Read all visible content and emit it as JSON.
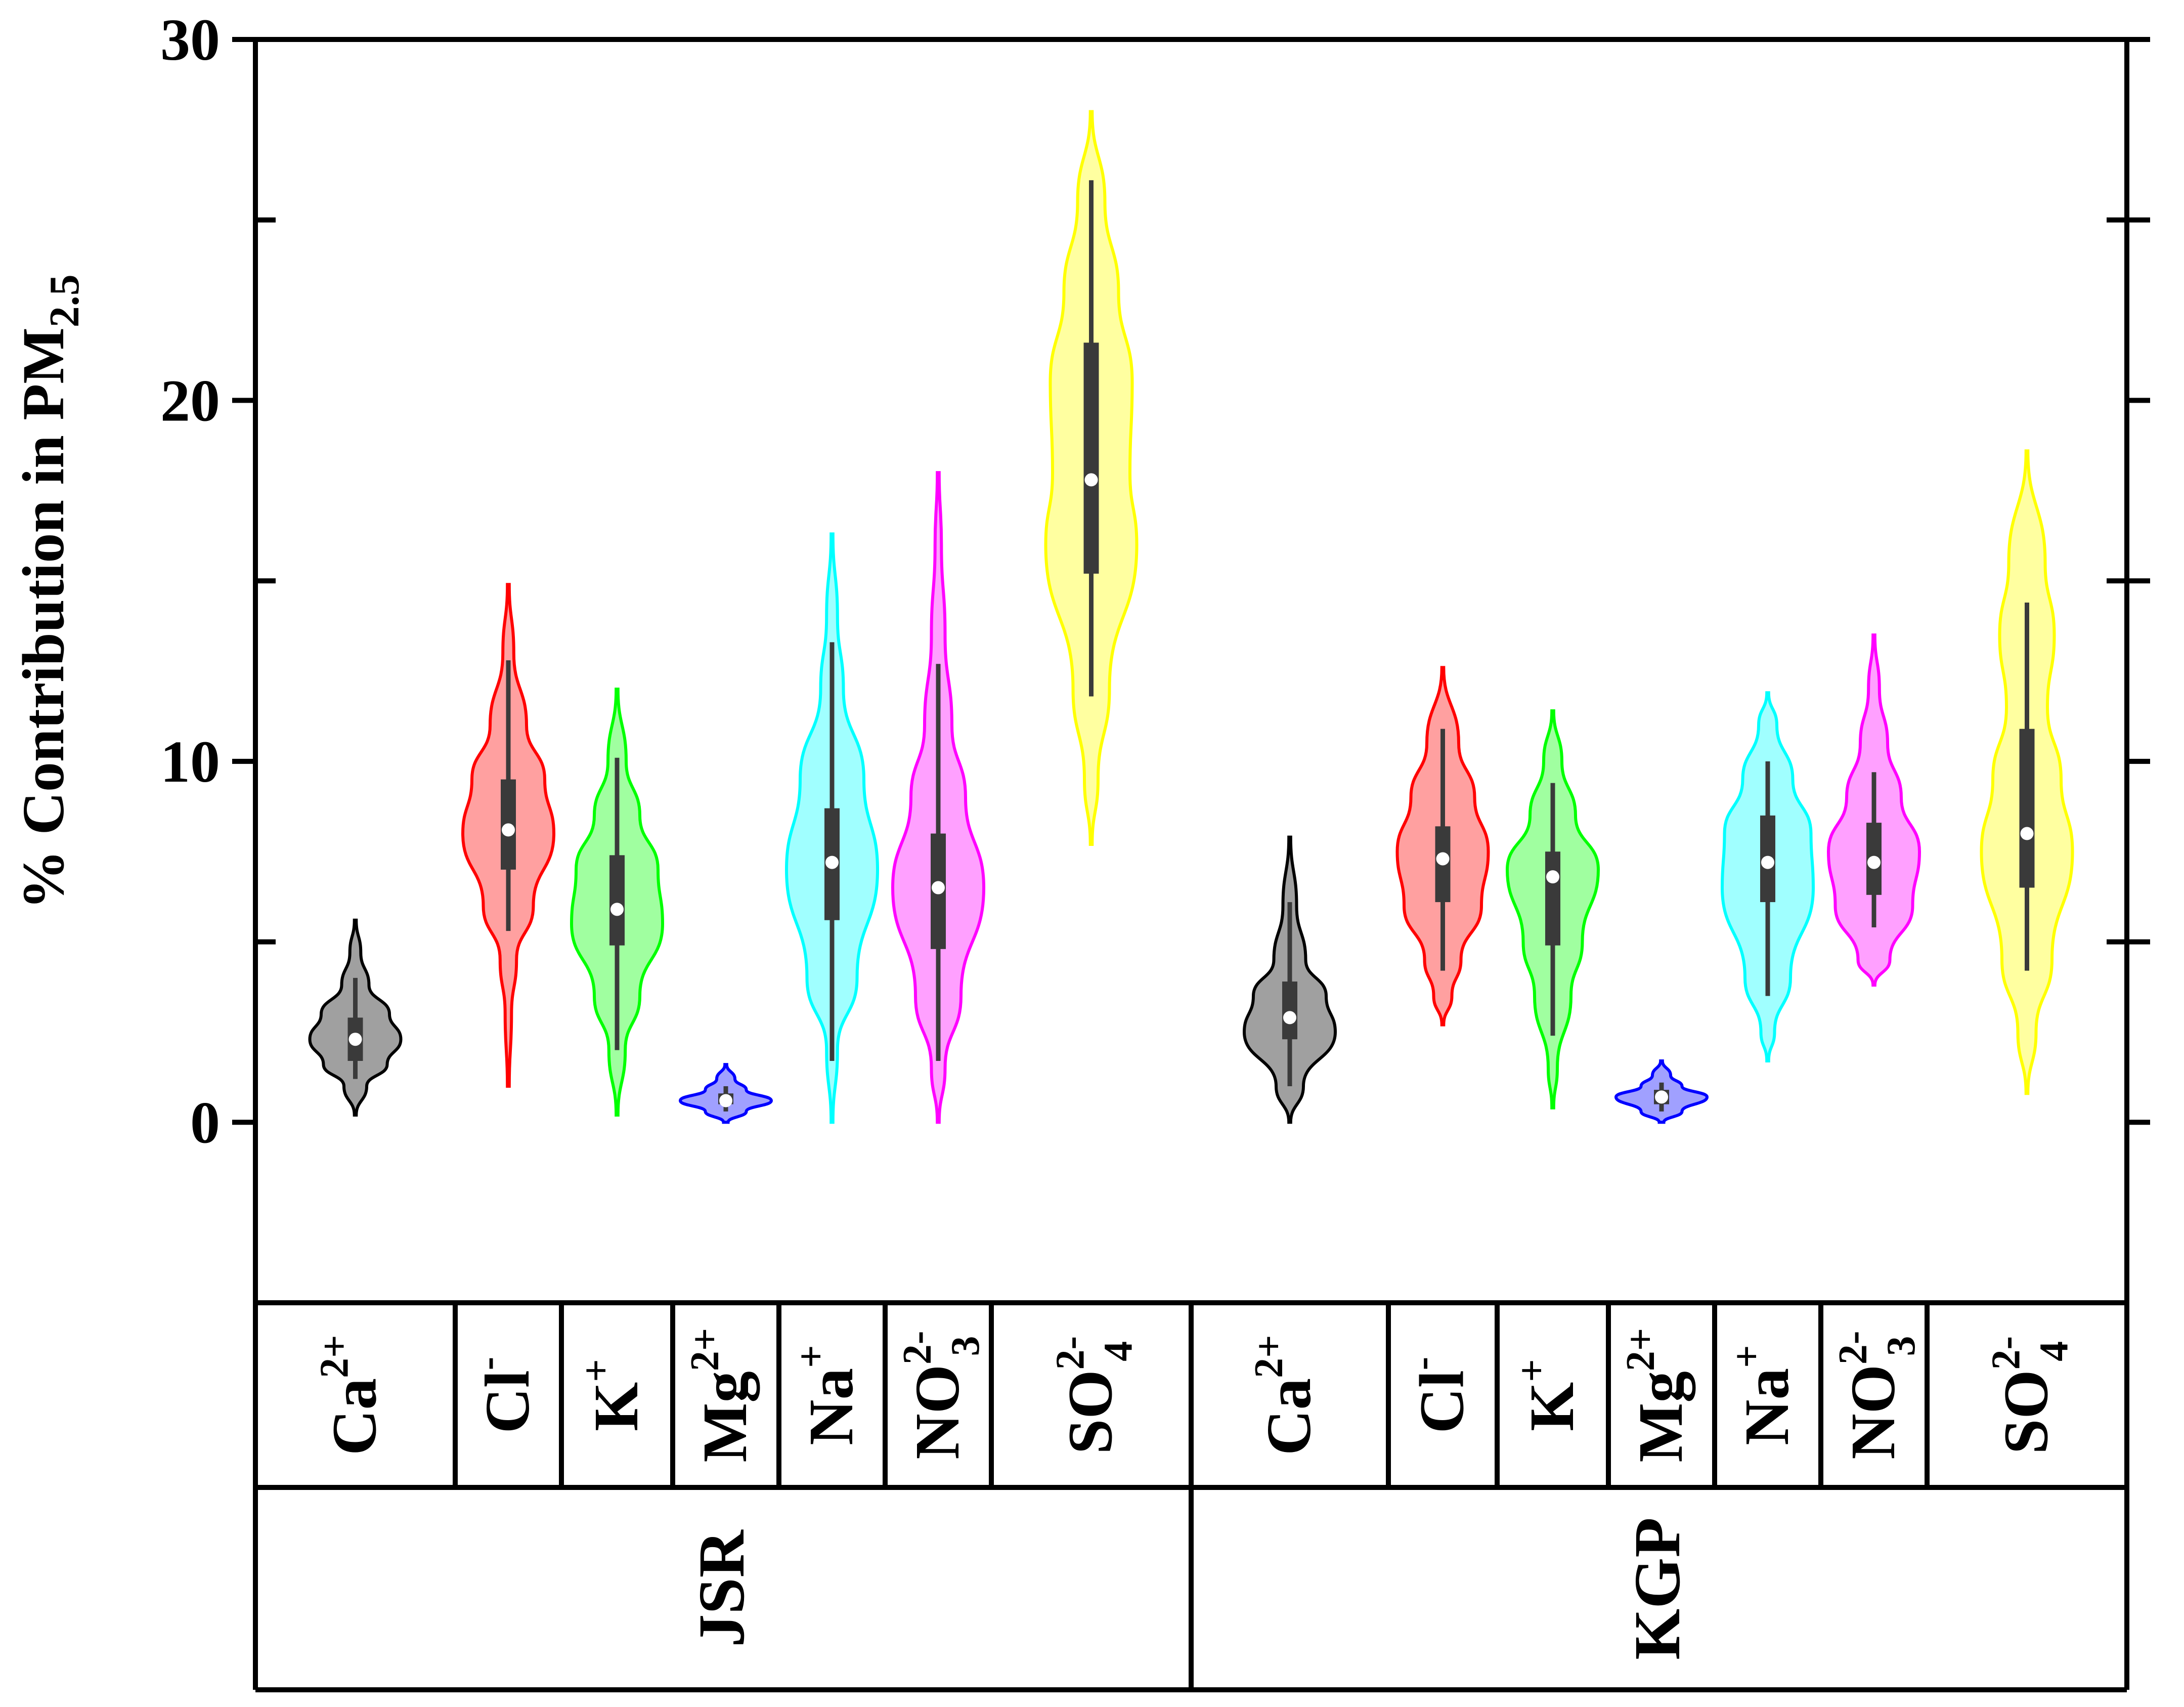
{
  "chart_data": {
    "type": "violin",
    "ylabel": "% Contribution in PM",
    "ylabel_sub": "2.5",
    "ylim": [
      -5,
      30
    ],
    "yticks": [
      0,
      10,
      20,
      30
    ],
    "ytick_labels": [
      "0",
      "10",
      "20",
      "30"
    ],
    "grid": false,
    "groups": [
      {
        "name": "JSR",
        "categories": [
          {
            "base": "Ca",
            "sub": "",
            "sup": "2+",
            "color": "#000000",
            "fill": "#808080",
            "min": 0.2,
            "max": 5.6,
            "whisker_low": 1.2,
            "whisker_high": 4.0,
            "q1": 1.7,
            "q3": 2.9,
            "median": 2.3,
            "density": [
              [
                0.2,
                0.02
              ],
              [
                1.0,
                0.25
              ],
              [
                1.6,
                0.7
              ],
              [
                2.3,
                1.0
              ],
              [
                3.0,
                0.75
              ],
              [
                3.8,
                0.3
              ],
              [
                4.7,
                0.12
              ],
              [
                5.6,
                0.02
              ]
            ]
          },
          {
            "base": "Cl",
            "sub": "",
            "sup": "-",
            "color": "#ff0000",
            "fill": "#ff8080",
            "min": 1.0,
            "max": 14.9,
            "whisker_low": 5.3,
            "whisker_high": 12.8,
            "q1": 7.0,
            "q3": 9.5,
            "median": 8.1,
            "density": [
              [
                1.0,
                0.02
              ],
              [
                3.0,
                0.07
              ],
              [
                4.5,
                0.18
              ],
              [
                6.0,
                0.55
              ],
              [
                8.0,
                1.0
              ],
              [
                9.5,
                0.8
              ],
              [
                11.0,
                0.4
              ],
              [
                13.0,
                0.12
              ],
              [
                14.9,
                0.02
              ]
            ]
          },
          {
            "base": "K",
            "sub": "",
            "sup": "+",
            "color": "#00ff00",
            "fill": "#80ff80",
            "min": 0.2,
            "max": 12.0,
            "whisker_low": 2.0,
            "whisker_high": 10.1,
            "q1": 4.9,
            "q3": 7.4,
            "median": 5.9,
            "density": [
              [
                0.2,
                0.02
              ],
              [
                2.0,
                0.18
              ],
              [
                3.5,
                0.5
              ],
              [
                5.5,
                1.0
              ],
              [
                7.0,
                0.9
              ],
              [
                8.5,
                0.5
              ],
              [
                10.0,
                0.2
              ],
              [
                12.0,
                0.02
              ]
            ]
          },
          {
            "base": "Mg",
            "sub": "",
            "sup": "2+",
            "color": "#0000ff",
            "fill": "#8080ff",
            "min": 0.0,
            "max": 1.6,
            "whisker_low": 0.3,
            "whisker_high": 1.0,
            "q1": 0.5,
            "q3": 0.8,
            "median": 0.6,
            "density": [
              [
                0.0,
                0.05
              ],
              [
                0.3,
                0.45
              ],
              [
                0.6,
                1.0
              ],
              [
                0.9,
                0.45
              ],
              [
                1.2,
                0.2
              ],
              [
                1.6,
                0.02
              ]
            ]
          },
          {
            "base": "Na",
            "sub": "",
            "sup": "+",
            "color": "#00ffff",
            "fill": "#80ffff",
            "min": 0.0,
            "max": 16.3,
            "whisker_low": 1.7,
            "whisker_high": 13.3,
            "q1": 5.6,
            "q3": 8.7,
            "median": 7.2,
            "density": [
              [
                0.0,
                0.02
              ],
              [
                2.0,
                0.12
              ],
              [
                4.0,
                0.55
              ],
              [
                7.0,
                1.0
              ],
              [
                9.5,
                0.7
              ],
              [
                12.0,
                0.25
              ],
              [
                14.0,
                0.12
              ],
              [
                16.3,
                0.02
              ]
            ]
          },
          {
            "base": "NO",
            "sub": "3",
            "sup": "2-",
            "color": "#ff00ff",
            "fill": "#ff80ff",
            "min": 0.0,
            "max": 18.0,
            "whisker_low": 1.7,
            "whisker_high": 12.7,
            "q1": 4.8,
            "q3": 8.0,
            "median": 6.5,
            "density": [
              [
                0.0,
                0.02
              ],
              [
                1.5,
                0.15
              ],
              [
                3.5,
                0.5
              ],
              [
                6.5,
                1.0
              ],
              [
                9.0,
                0.6
              ],
              [
                11.0,
                0.3
              ],
              [
                13.5,
                0.15
              ],
              [
                16.0,
                0.07
              ],
              [
                18.0,
                0.02
              ]
            ]
          },
          {
            "base": "SO",
            "sub": "4",
            "sup": "2-",
            "color": "#ffff00",
            "fill": "#ffff80",
            "min": 7.7,
            "max": 28.0,
            "whisker_low": 11.8,
            "whisker_high": 26.1,
            "q1": 15.2,
            "q3": 21.6,
            "median": 17.8,
            "density": [
              [
                7.7,
                0.02
              ],
              [
                9.5,
                0.15
              ],
              [
                12.0,
                0.4
              ],
              [
                16.0,
                1.0
              ],
              [
                18.0,
                0.85
              ],
              [
                20.5,
                0.9
              ],
              [
                23.0,
                0.6
              ],
              [
                25.5,
                0.3
              ],
              [
                28.0,
                0.02
              ]
            ]
          }
        ]
      },
      {
        "name": "KGP",
        "categories": [
          {
            "base": "Ca",
            "sub": "",
            "sup": "2+",
            "color": "#000000",
            "fill": "#808080",
            "min": 0.0,
            "max": 7.9,
            "whisker_low": 1.0,
            "whisker_high": 6.1,
            "q1": 2.3,
            "q3": 3.9,
            "median": 2.9,
            "density": [
              [
                0.0,
                0.02
              ],
              [
                1.0,
                0.3
              ],
              [
                2.5,
                1.0
              ],
              [
                3.5,
                0.8
              ],
              [
                4.5,
                0.35
              ],
              [
                6.0,
                0.15
              ],
              [
                7.9,
                0.02
              ]
            ]
          },
          {
            "base": "Cl",
            "sub": "",
            "sup": "-",
            "color": "#ff0000",
            "fill": "#ff8080",
            "min": 2.7,
            "max": 12.6,
            "whisker_low": 4.2,
            "whisker_high": 10.9,
            "q1": 6.1,
            "q3": 8.2,
            "median": 7.3,
            "density": [
              [
                2.7,
                0.02
              ],
              [
                3.5,
                0.2
              ],
              [
                4.5,
                0.4
              ],
              [
                6.0,
                0.85
              ],
              [
                7.5,
                1.0
              ],
              [
                9.0,
                0.7
              ],
              [
                10.5,
                0.35
              ],
              [
                12.6,
                0.02
              ]
            ]
          },
          {
            "base": "K",
            "sub": "",
            "sup": "+",
            "color": "#00ff00",
            "fill": "#80ff80",
            "min": 0.4,
            "max": 11.4,
            "whisker_low": 2.4,
            "whisker_high": 9.4,
            "q1": 4.9,
            "q3": 7.5,
            "median": 6.8,
            "density": [
              [
                0.4,
                0.02
              ],
              [
                1.5,
                0.1
              ],
              [
                3.5,
                0.4
              ],
              [
                5.0,
                0.65
              ],
              [
                7.0,
                1.0
              ],
              [
                8.5,
                0.5
              ],
              [
                10.0,
                0.2
              ],
              [
                11.4,
                0.02
              ]
            ]
          },
          {
            "base": "Mg",
            "sub": "",
            "sup": "2+",
            "color": "#0000ff",
            "fill": "#8080ff",
            "min": 0.0,
            "max": 1.7,
            "whisker_low": 0.3,
            "whisker_high": 1.1,
            "q1": 0.5,
            "q3": 0.9,
            "median": 0.7,
            "density": [
              [
                0.0,
                0.05
              ],
              [
                0.3,
                0.45
              ],
              [
                0.7,
                1.0
              ],
              [
                1.0,
                0.45
              ],
              [
                1.3,
                0.2
              ],
              [
                1.7,
                0.02
              ]
            ]
          },
          {
            "base": "Na",
            "sub": "",
            "sup": "+",
            "color": "#00ffff",
            "fill": "#80ffff",
            "min": 1.7,
            "max": 11.9,
            "whisker_low": 3.5,
            "whisker_high": 10.0,
            "q1": 6.1,
            "q3": 8.5,
            "median": 7.2,
            "density": [
              [
                1.7,
                0.02
              ],
              [
                2.5,
                0.15
              ],
              [
                4.0,
                0.5
              ],
              [
                6.5,
                1.0
              ],
              [
                8.0,
                0.95
              ],
              [
                9.5,
                0.55
              ],
              [
                11.0,
                0.2
              ],
              [
                11.9,
                0.02
              ]
            ]
          },
          {
            "base": "NO",
            "sub": "3",
            "sup": "2-",
            "color": "#ff00ff",
            "fill": "#ff80ff",
            "min": 3.8,
            "max": 13.5,
            "whisker_low": 5.4,
            "whisker_high": 9.7,
            "q1": 6.3,
            "q3": 8.3,
            "median": 7.2,
            "density": [
              [
                3.8,
                0.02
              ],
              [
                4.5,
                0.35
              ],
              [
                6.0,
                0.85
              ],
              [
                7.5,
                1.0
              ],
              [
                9.0,
                0.6
              ],
              [
                10.5,
                0.3
              ],
              [
                12.0,
                0.12
              ],
              [
                13.5,
                0.02
              ]
            ]
          },
          {
            "base": "SO",
            "sub": "4",
            "sup": "2-",
            "color": "#ffff00",
            "fill": "#ffff80",
            "min": 0.8,
            "max": 18.6,
            "whisker_low": 4.2,
            "whisker_high": 14.4,
            "q1": 6.5,
            "q3": 10.9,
            "median": 8.0,
            "density": [
              [
                0.8,
                0.02
              ],
              [
                2.5,
                0.2
              ],
              [
                4.5,
                0.55
              ],
              [
                7.5,
                1.0
              ],
              [
                9.5,
                0.75
              ],
              [
                11.5,
                0.45
              ],
              [
                13.5,
                0.6
              ],
              [
                15.5,
                0.4
              ],
              [
                18.6,
                0.02
              ]
            ]
          }
        ]
      }
    ]
  }
}
